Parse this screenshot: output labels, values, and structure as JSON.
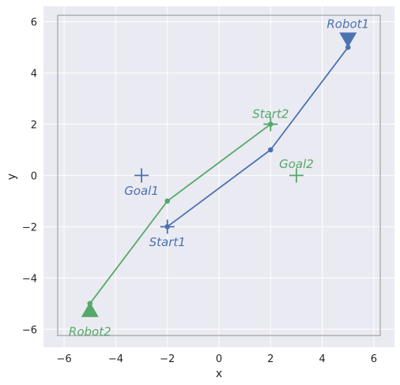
{
  "chart_data": {
    "type": "line",
    "xlabel": "x",
    "ylabel": "y",
    "xlim": [
      -6.8,
      6.8
    ],
    "ylim": [
      -6.7,
      6.6
    ],
    "xticks": [
      -6,
      -4,
      -2,
      0,
      2,
      4,
      6
    ],
    "yticks": [
      -6,
      -4,
      -2,
      0,
      2,
      4,
      6
    ],
    "grid": true,
    "boundary": {
      "x": [
        -6.25,
        6.25
      ],
      "y": [
        -6.25,
        6.25
      ],
      "color": "#b0b0b0"
    },
    "series": [
      {
        "color": "#4c72b0",
        "points": [
          [
            -2,
            -2
          ],
          [
            2,
            1
          ],
          [
            5,
            5
          ]
        ]
      },
      {
        "color": "#55a868",
        "points": [
          [
            -5,
            -5
          ],
          [
            -2,
            -1
          ],
          [
            2,
            2
          ]
        ]
      }
    ],
    "markers": [
      {
        "kind": "triangle-down",
        "x": 5,
        "y": 5.3,
        "color": "#4c72b0"
      },
      {
        "kind": "triangle-up",
        "x": -5,
        "y": -5.25,
        "color": "#55a868"
      },
      {
        "kind": "plus",
        "x": -3,
        "y": 0,
        "color": "#4c72b0"
      },
      {
        "kind": "plus",
        "x": -2,
        "y": -2,
        "color": "#4c72b0"
      },
      {
        "kind": "plus",
        "x": 2,
        "y": 2,
        "color": "#55a868"
      },
      {
        "kind": "plus",
        "x": 3,
        "y": 0,
        "color": "#55a868"
      }
    ],
    "annotations": [
      {
        "text": "Robot1",
        "x": 5,
        "y": 5.9,
        "color": "#4c72b0"
      },
      {
        "text": "Goal1",
        "x": -3,
        "y": -0.6,
        "color": "#4c72b0"
      },
      {
        "text": "Start1",
        "x": -2,
        "y": -2.6,
        "color": "#4c72b0"
      },
      {
        "text": "Start2",
        "x": 2,
        "y": 2.4,
        "color": "#55a868"
      },
      {
        "text": "Goal2",
        "x": 3,
        "y": 0.45,
        "color": "#55a868"
      },
      {
        "text": "Robot2",
        "x": -5,
        "y": -6.1,
        "color": "#55a868"
      }
    ]
  }
}
